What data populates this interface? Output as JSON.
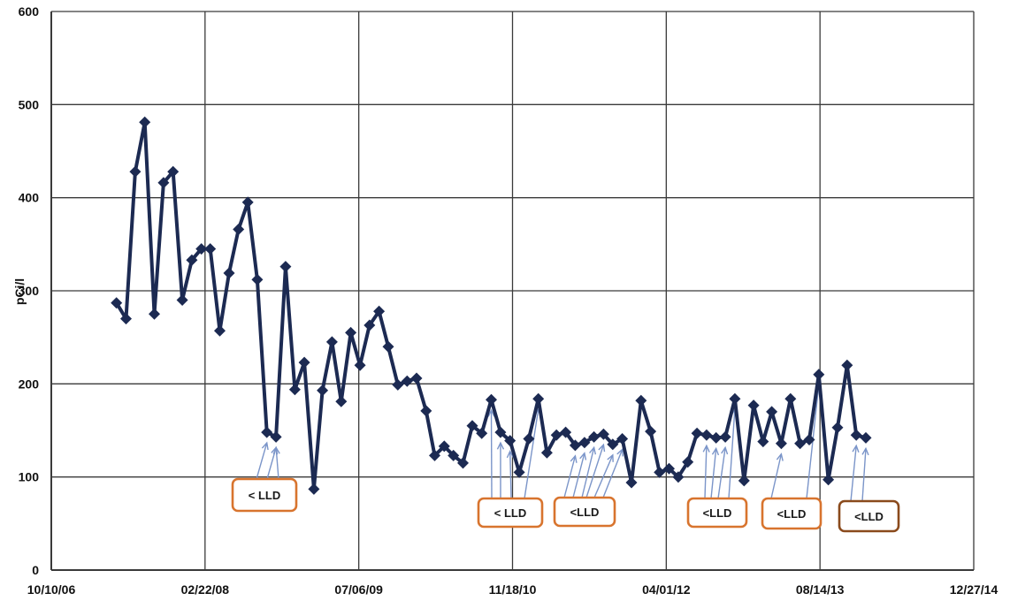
{
  "chart_data": {
    "type": "line",
    "ylabel": "pCi/l",
    "ylim": [
      0,
      600
    ],
    "yticks": [
      0,
      100,
      200,
      300,
      400,
      500,
      600
    ],
    "xticks": [
      "10/10/06",
      "02/22/08",
      "07/06/09",
      "11/18/10",
      "04/01/12",
      "08/14/13",
      "12/27/14"
    ],
    "grid": true,
    "colors": {
      "line": "#1c2a52",
      "marker": "#1c2a52",
      "grid": "#3a3a3a",
      "annotation_border": "#d8742e",
      "annotation_border_dark": "#8a4a1c",
      "arrow": "#7b95c9"
    },
    "series": [
      {
        "x": [
          "2007-05-10",
          "2007-06-10",
          "2007-07-10",
          "2007-08-10",
          "2007-09-10",
          "2007-10-10",
          "2007-11-10",
          "2007-12-10",
          "2008-01-10",
          "2008-02-10",
          "2008-03-10",
          "2008-04-10",
          "2008-05-10",
          "2008-06-10",
          "2008-07-10",
          "2008-08-10",
          "2008-09-10",
          "2008-10-10",
          "2008-11-10",
          "2008-12-10",
          "2009-01-10",
          "2009-02-10",
          "2009-03-10",
          "2009-04-10",
          "2009-05-10",
          "2009-06-10",
          "2009-07-10",
          "2009-08-10",
          "2009-09-10",
          "2009-10-10",
          "2009-11-10",
          "2009-12-10",
          "2010-01-10",
          "2010-02-10",
          "2010-03-10",
          "2010-04-10",
          "2010-05-10",
          "2010-06-10",
          "2010-07-10",
          "2010-08-10",
          "2010-09-10",
          "2010-10-10",
          "2010-11-10",
          "2010-12-10",
          "2011-01-10",
          "2011-02-10",
          "2011-03-10",
          "2011-04-10",
          "2011-05-10",
          "2011-06-10",
          "2011-07-10",
          "2011-08-10",
          "2011-09-10",
          "2011-10-10",
          "2011-11-10",
          "2011-12-10",
          "2012-01-10",
          "2012-02-10",
          "2012-03-10",
          "2012-04-10",
          "2012-05-10",
          "2012-06-10",
          "2012-07-10",
          "2012-08-10",
          "2012-09-10",
          "2012-10-10",
          "2012-11-10",
          "2012-12-10",
          "2013-01-10",
          "2013-02-10",
          "2013-03-10",
          "2013-04-10",
          "2013-05-10",
          "2013-06-10",
          "2013-07-10",
          "2013-08-10",
          "2013-09-10",
          "2013-10-10",
          "2013-11-10",
          "2013-12-10",
          "2014-01-10"
        ],
        "values": [
          287,
          270,
          428,
          481,
          275,
          416,
          428,
          290,
          333,
          345,
          345,
          257,
          319,
          366,
          395,
          312,
          148,
          143,
          326,
          194,
          223,
          87,
          193,
          245,
          181,
          255,
          220,
          263,
          278,
          240,
          199,
          203,
          206,
          171,
          123,
          133,
          123,
          115,
          155,
          147,
          183,
          148,
          139,
          105,
          141,
          184,
          126,
          145,
          148,
          134,
          137,
          143,
          146,
          135,
          141,
          94,
          182,
          149,
          105,
          109,
          100,
          116,
          147,
          145,
          142,
          143,
          184,
          96,
          177,
          138,
          170,
          136,
          184,
          136,
          140,
          210,
          97,
          153,
          220,
          145,
          142
        ]
      }
    ],
    "annotations": [
      {
        "text": "< LLD"
      },
      {
        "text": "< LLD"
      },
      {
        "text": "<LLD"
      },
      {
        "text": "<LLD"
      },
      {
        "text": "<LLD"
      },
      {
        "text": "<LLD"
      }
    ]
  }
}
